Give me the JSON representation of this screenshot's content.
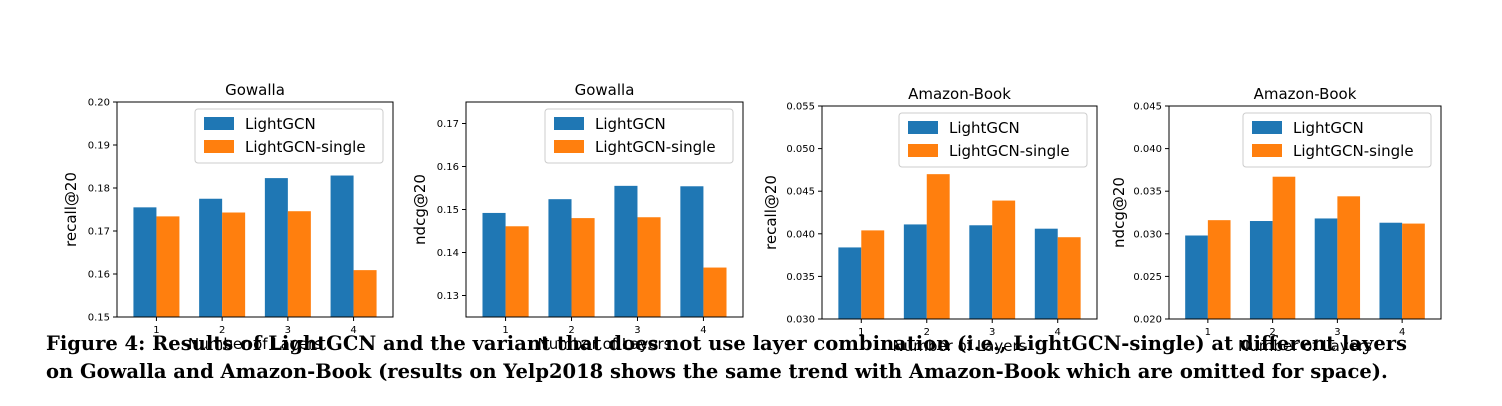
{
  "chart_data": [
    {
      "type": "bar",
      "title": "Gowalla",
      "xlabel": "Number of Layers",
      "ylabel": "recall@20",
      "categories": [
        "1",
        "2",
        "3",
        "4"
      ],
      "ylim": [
        0.15,
        0.2
      ],
      "yticks": [
        "0.15",
        "0.16",
        "0.17",
        "0.18",
        "0.19",
        "0.20"
      ],
      "legend_position": "top-right",
      "series": [
        {
          "name": "LightGCN",
          "color": "#1f77b4",
          "values": [
            0.1755,
            0.1775,
            0.1823,
            0.1829
          ]
        },
        {
          "name": "LightGCN-single",
          "color": "#ff7f0e",
          "values": [
            0.1734,
            0.1743,
            0.1746,
            0.1609
          ]
        }
      ]
    },
    {
      "type": "bar",
      "title": "Gowalla",
      "xlabel": "Number of Layers",
      "ylabel": "ndcg@20",
      "categories": [
        "1",
        "2",
        "3",
        "4"
      ],
      "ylim": [
        0.125,
        0.175
      ],
      "yticks": [
        "0.13",
        "0.14",
        "0.15",
        "0.16",
        "0.17"
      ],
      "legend_position": "top-right",
      "series": [
        {
          "name": "LightGCN",
          "color": "#1f77b4",
          "values": [
            0.1492,
            0.1524,
            0.1555,
            0.1554
          ]
        },
        {
          "name": "LightGCN-single",
          "color": "#ff7f0e",
          "values": [
            0.1461,
            0.148,
            0.1482,
            0.1365
          ]
        }
      ]
    },
    {
      "type": "bar",
      "title": "Amazon-Book",
      "xlabel": "Number of Layers",
      "ylabel": "recall@20",
      "categories": [
        "1",
        "2",
        "3",
        "4"
      ],
      "ylim": [
        0.03,
        0.055
      ],
      "yticks": [
        "0.030",
        "0.035",
        "0.040",
        "0.045",
        "0.050",
        "0.055"
      ],
      "legend_position": "top-right",
      "series": [
        {
          "name": "LightGCN",
          "color": "#1f77b4",
          "values": [
            0.0384,
            0.0411,
            0.041,
            0.0406
          ]
        },
        {
          "name": "LightGCN-single",
          "color": "#ff7f0e",
          "values": [
            0.0404,
            0.047,
            0.0439,
            0.0396
          ]
        }
      ]
    },
    {
      "type": "bar",
      "title": "Amazon-Book",
      "xlabel": "Number of Layers",
      "ylabel": "ndcg@20",
      "categories": [
        "1",
        "2",
        "3",
        "4"
      ],
      "ylim": [
        0.02,
        0.045
      ],
      "yticks": [
        "0.020",
        "0.025",
        "0.030",
        "0.035",
        "0.040",
        "0.045"
      ],
      "legend_position": "top-right",
      "series": [
        {
          "name": "LightGCN",
          "color": "#1f77b4",
          "values": [
            0.0298,
            0.0315,
            0.0318,
            0.0313
          ]
        },
        {
          "name": "LightGCN-single",
          "color": "#ff7f0e",
          "values": [
            0.0316,
            0.0367,
            0.0344,
            0.0312
          ]
        }
      ]
    }
  ],
  "caption": {
    "line1": "Figure 4: Results of LightGCN and the variant that does not use layer combination (i.e., LightGCN-single) at different layers",
    "line2": "on Gowalla and Amazon-Book (results on Yelp2018 shows the same trend with Amazon-Book which are omitted for space)."
  }
}
